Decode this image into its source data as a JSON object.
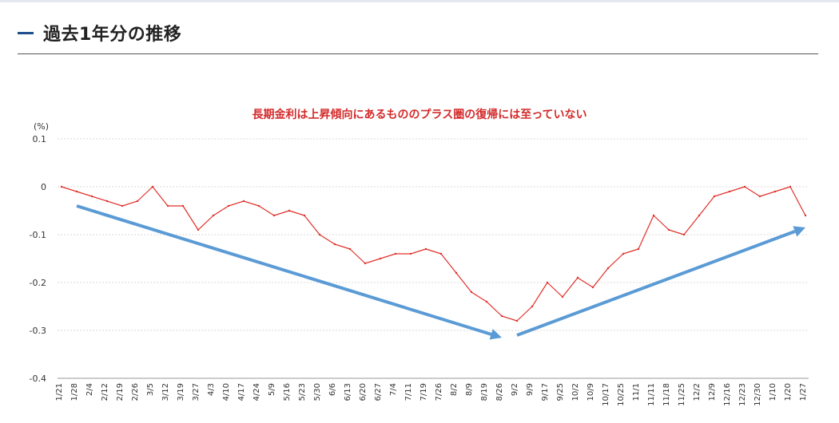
{
  "page": {
    "title": "過去1年分の推移"
  },
  "chart_data": {
    "type": "line",
    "title": "長期金利は上昇傾向にあるもののプラス圏の復帰には至っていない",
    "ylabel": "(%)",
    "xlabel": "",
    "ylim": [
      -0.4,
      0.1
    ],
    "yticks": [
      {
        "value": 0.1,
        "label": "0.1"
      },
      {
        "value": 0,
        "label": "0"
      },
      {
        "value": -0.1,
        "label": "-0.1"
      },
      {
        "value": -0.2,
        "label": "-0.2"
      },
      {
        "value": -0.3,
        "label": "-0.3"
      },
      {
        "value": -0.4,
        "label": "-0.4"
      }
    ],
    "grid": true,
    "categories": [
      "1/21",
      "1/28",
      "2/4",
      "2/12",
      "2/19",
      "2/26",
      "3/5",
      "3/12",
      "3/19",
      "3/27",
      "4/3",
      "4/10",
      "4/17",
      "4/24",
      "5/9",
      "5/16",
      "5/23",
      "5/30",
      "6/6",
      "6/13",
      "6/20",
      "6/27",
      "7/4",
      "7/11",
      "7/19",
      "7/26",
      "8/2",
      "8/9",
      "8/19",
      "8/26",
      "9/2",
      "9/9",
      "9/17",
      "9/25",
      "10/2",
      "10/9",
      "10/17",
      "10/25",
      "11/1",
      "11/11",
      "11/18",
      "11/25",
      "12/2",
      "12/9",
      "12/16",
      "12/23",
      "12/30",
      "1/10",
      "1/20",
      "1/27"
    ],
    "series": [
      {
        "color": "#e0302a",
        "values": [
          0.0,
          -0.01,
          -0.02,
          -0.03,
          -0.04,
          -0.03,
          0.0,
          -0.04,
          -0.04,
          -0.09,
          -0.06,
          -0.04,
          -0.03,
          -0.04,
          -0.06,
          -0.05,
          -0.06,
          -0.1,
          -0.12,
          -0.13,
          -0.16,
          -0.15,
          -0.14,
          -0.14,
          -0.13,
          -0.14,
          -0.18,
          -0.22,
          -0.24,
          -0.27,
          -0.28,
          -0.25,
          -0.2,
          -0.23,
          -0.19,
          -0.21,
          -0.17,
          -0.14,
          -0.13,
          -0.06,
          -0.09,
          -0.1,
          -0.06,
          -0.02,
          -0.01,
          0.0,
          -0.02,
          -0.01,
          0.0,
          -0.06
        ]
      }
    ],
    "trend_arrows": [
      {
        "from": {
          "category": "1/28",
          "value": -0.04
        },
        "to": {
          "category": "8/26",
          "value": -0.315
        },
        "color": "#5b9bd5"
      },
      {
        "from": {
          "category": "9/2",
          "value": -0.31
        },
        "to": {
          "category": "1/27",
          "value": -0.085
        },
        "color": "#5b9bd5"
      }
    ]
  }
}
